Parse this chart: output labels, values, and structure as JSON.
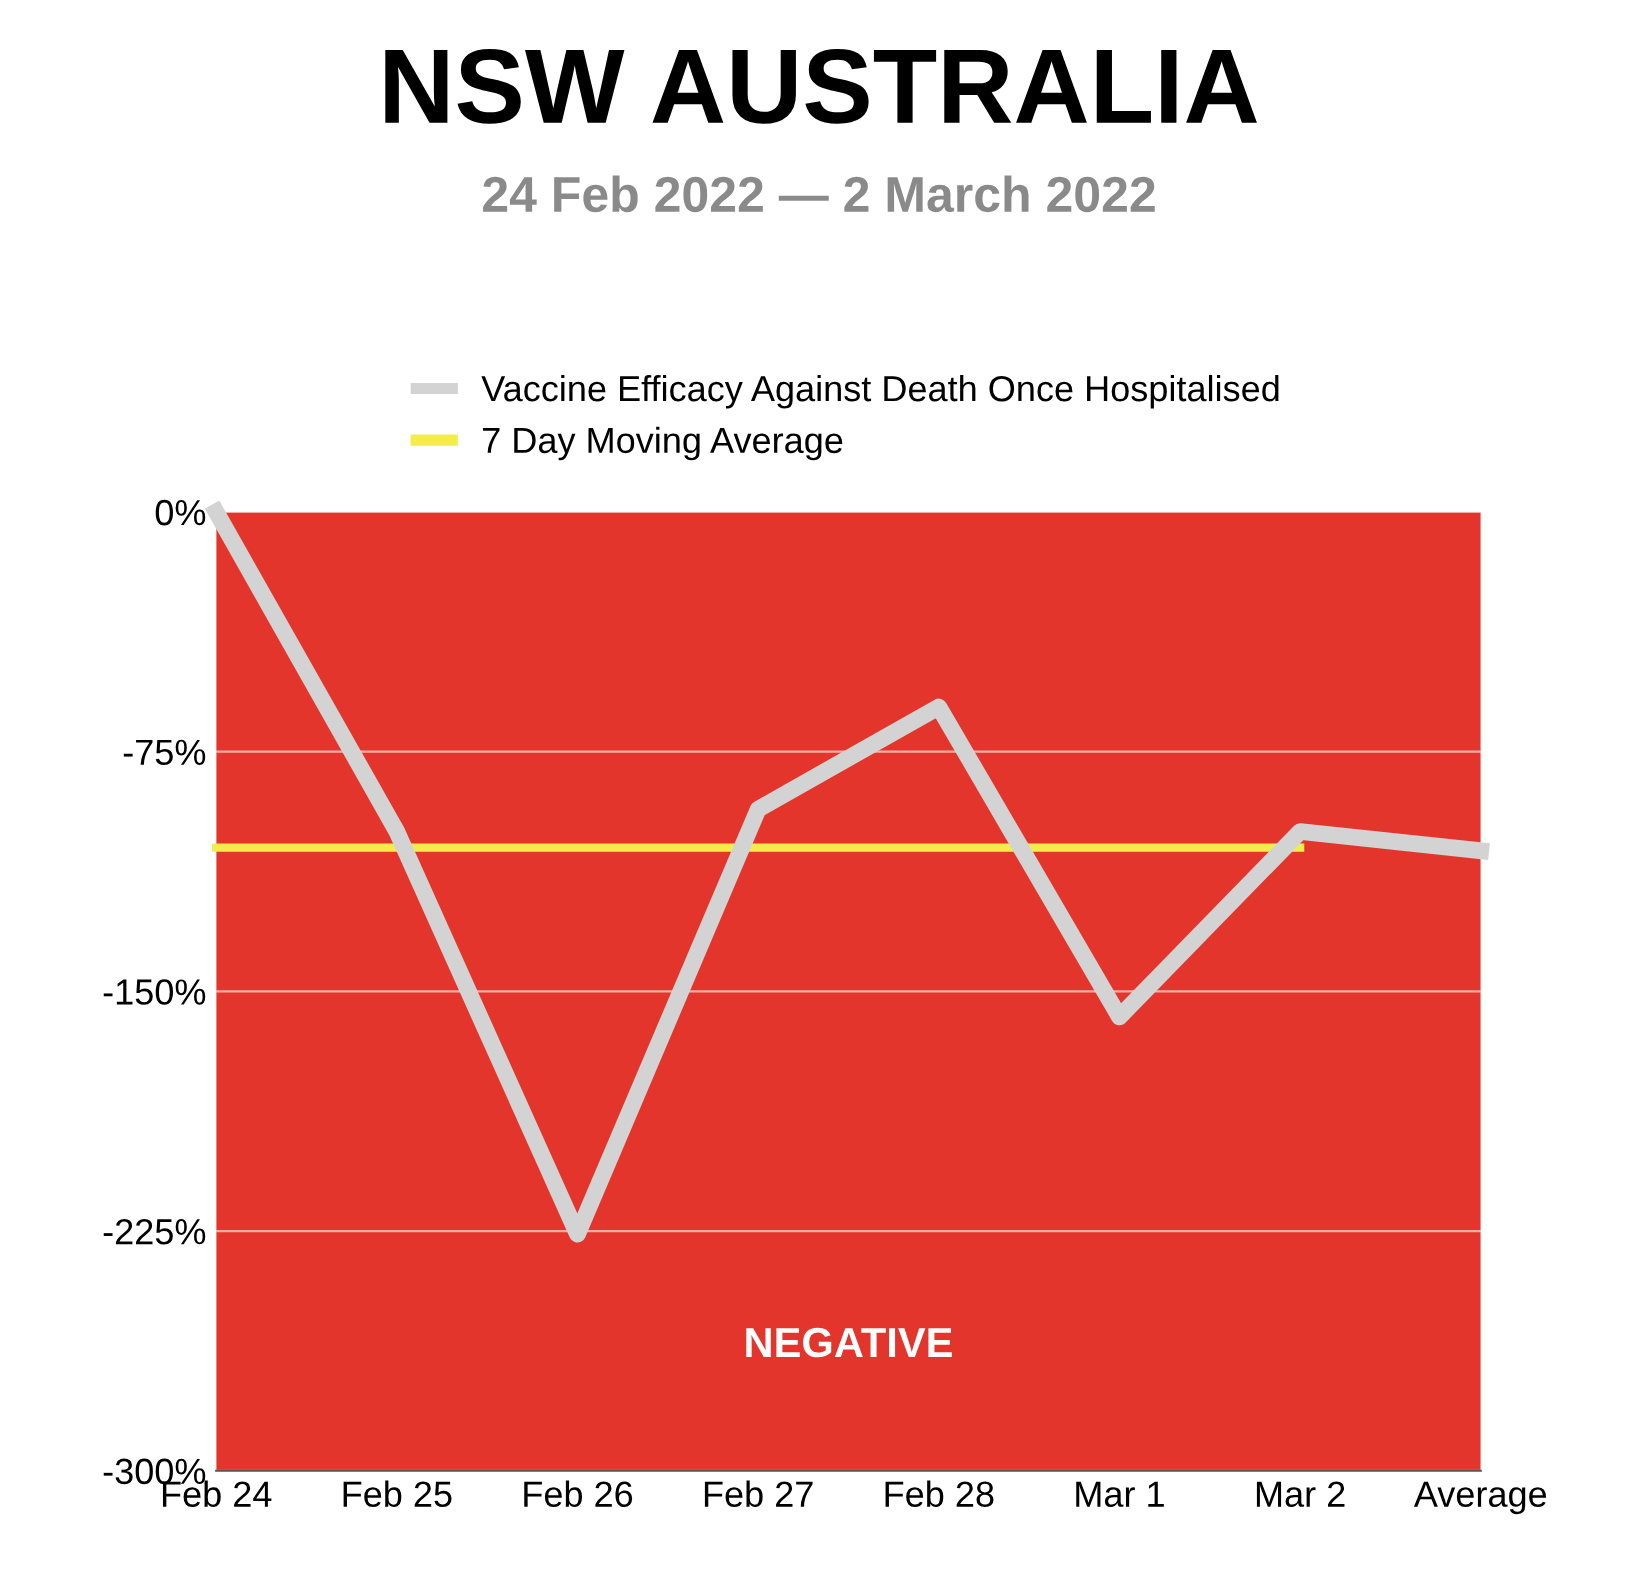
{
  "chart_data": {
    "type": "line",
    "title": "NSW AUSTRALIA",
    "subtitle": "24 Feb 2022 — 2 March 2022",
    "categories": [
      "Feb 24",
      "Feb 25",
      "Feb 26",
      "Feb 27",
      "Feb 28",
      "Mar 1",
      "Mar 2",
      "Average"
    ],
    "series": [
      {
        "name": "Vaccine Efficacy Against Death Once Hospitalised",
        "color": "#d3d3d3",
        "values": [
          0,
          -100,
          -226,
          -93,
          -61,
          -158,
          -100,
          -106
        ]
      },
      {
        "name": "7 Day Moving Average",
        "color": "#f5ec4a",
        "values": [
          -105,
          -105,
          -105,
          -105,
          -105,
          -105,
          -105,
          null
        ]
      }
    ],
    "ylim": [
      -300,
      0
    ],
    "yticks": [
      {
        "value": 0,
        "label": "0%"
      },
      {
        "value": -75,
        "label": "-75%"
      },
      {
        "value": -150,
        "label": "-150%"
      },
      {
        "value": -225,
        "label": "-225%"
      },
      {
        "value": -300,
        "label": "-300%"
      }
    ],
    "bands": [
      {
        "axis": "y",
        "from": 0,
        "to": -300,
        "label": "NEGATIVE",
        "color": "#e3352b"
      }
    ],
    "grid": "y",
    "legend": "top",
    "marker": "none",
    "line_style": "solid"
  }
}
